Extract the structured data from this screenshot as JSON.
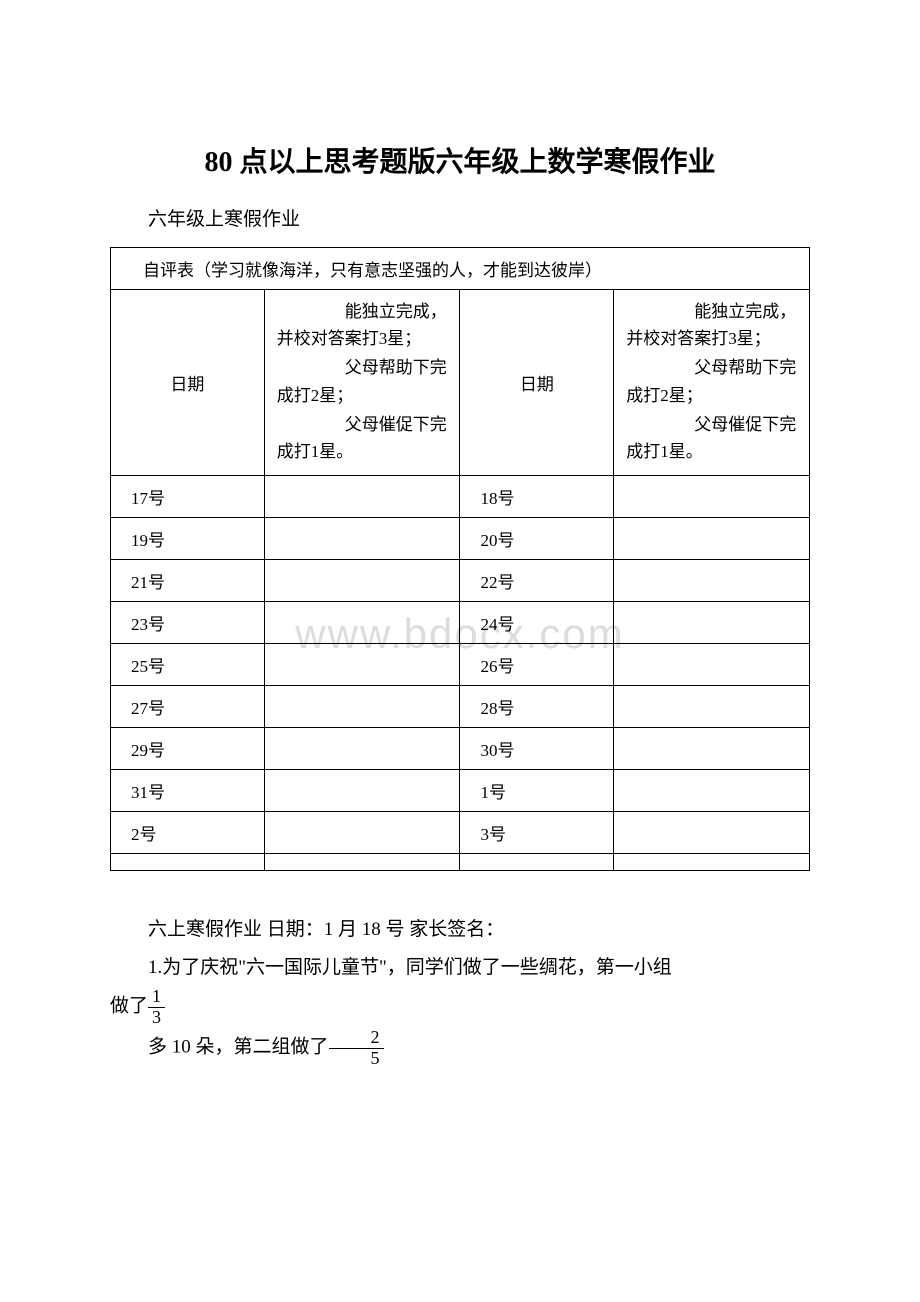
{
  "title": "80 点以上思考题版六年级上数学寒假作业",
  "subtitle": "六年级上寒假作业",
  "watermark_text": "www.bdocx.com",
  "table": {
    "header": "自评表（学习就像海洋，只有意志坚强的人，才能到达彼岸）",
    "col_date_label": "日期",
    "desc_line1": "　　能独立完成，并校对答案打3星；",
    "desc_line2": "　　父母帮助下完成打2星；",
    "desc_line3": "　　父母催促下完成打1星。",
    "rows": [
      {
        "left": "17号",
        "right": "18号"
      },
      {
        "left": "19号",
        "right": "20号"
      },
      {
        "left": "21号",
        "right": "22号"
      },
      {
        "left": "23号",
        "right": "24号"
      },
      {
        "left": "25号",
        "right": "26号"
      },
      {
        "left": "27号",
        "right": "28号"
      },
      {
        "left": "29号",
        "right": "30号"
      },
      {
        "left": "31号",
        "right": "1号"
      },
      {
        "left": "2号",
        "right": "3号"
      }
    ]
  },
  "body": {
    "line1": "六上寒假作业 日期：1 月 18 号 家长签名：",
    "line2_a": "1.为了庆祝\"六一国际儿童节\"，同学们做了一些绸花，第一小组",
    "line2_b": "做了",
    "frac1_num": "1",
    "frac1_den": "3",
    "line3_a": "多 10 朵，第二组做了",
    "frac2_num": "2",
    "frac2_den": "5"
  },
  "colors": {
    "text": "#000000",
    "border": "#000000",
    "background": "#ffffff",
    "watermark": "#dcdcdc"
  }
}
